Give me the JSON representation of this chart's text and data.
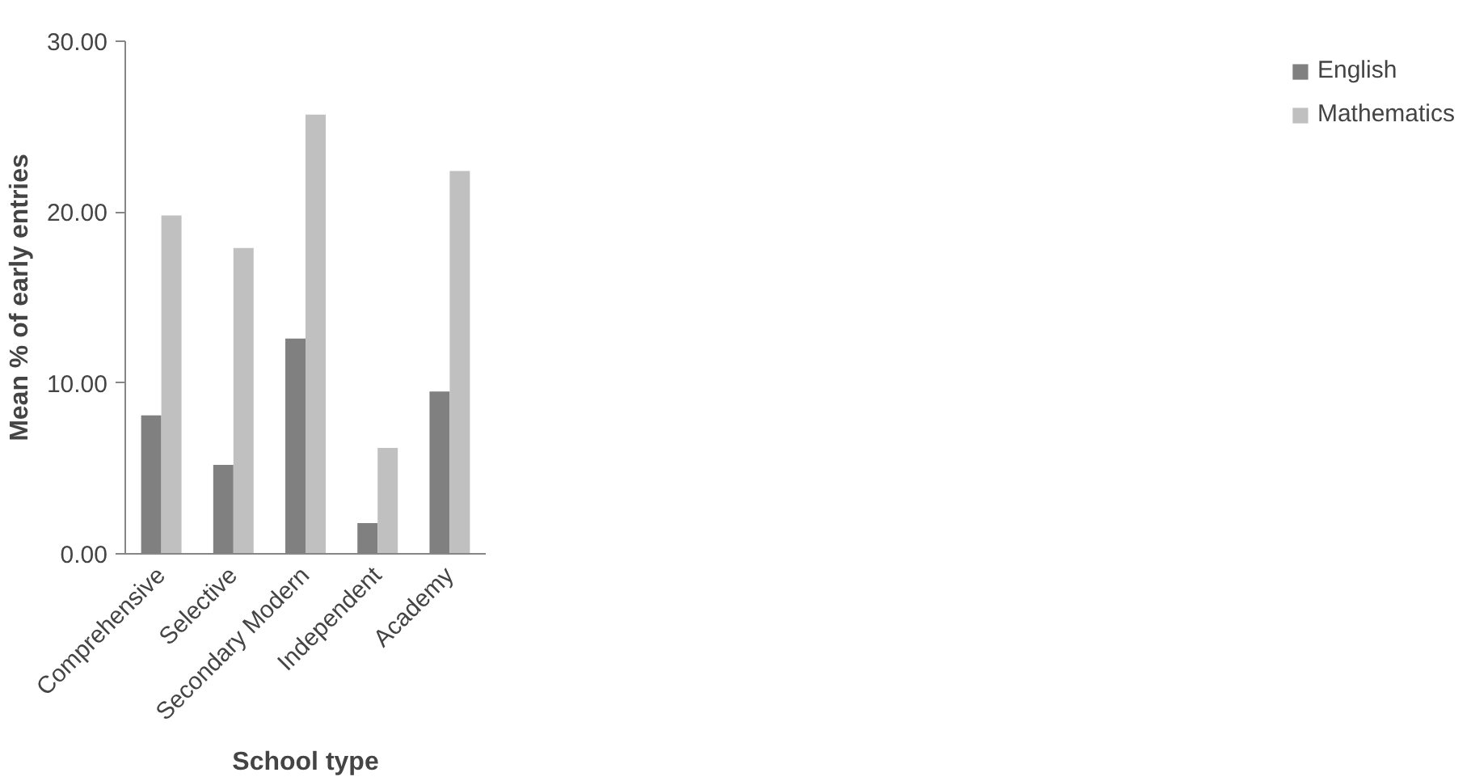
{
  "chart_data": {
    "type": "bar",
    "xlabel": "School type",
    "ylabel": "Mean % of early entries",
    "categories": [
      "Comprehensive",
      "Selective",
      "Secondary Modern",
      "Independent",
      "Academy"
    ],
    "series": [
      {
        "name": "English",
        "color": "#808080",
        "values": [
          8.1,
          5.2,
          12.6,
          1.8,
          9.5
        ]
      },
      {
        "name": "Mathematics",
        "color": "#c0c0c0",
        "values": [
          19.8,
          17.9,
          25.7,
          6.2,
          22.4
        ]
      }
    ],
    "ylim": [
      0,
      30
    ],
    "yticks": [
      {
        "value": 0,
        "label": "0.00"
      },
      {
        "value": 10,
        "label": "10.00"
      },
      {
        "value": 20,
        "label": "20.00"
      },
      {
        "value": 30,
        "label": "30.00"
      }
    ],
    "grid": false,
    "legend": "right"
  }
}
